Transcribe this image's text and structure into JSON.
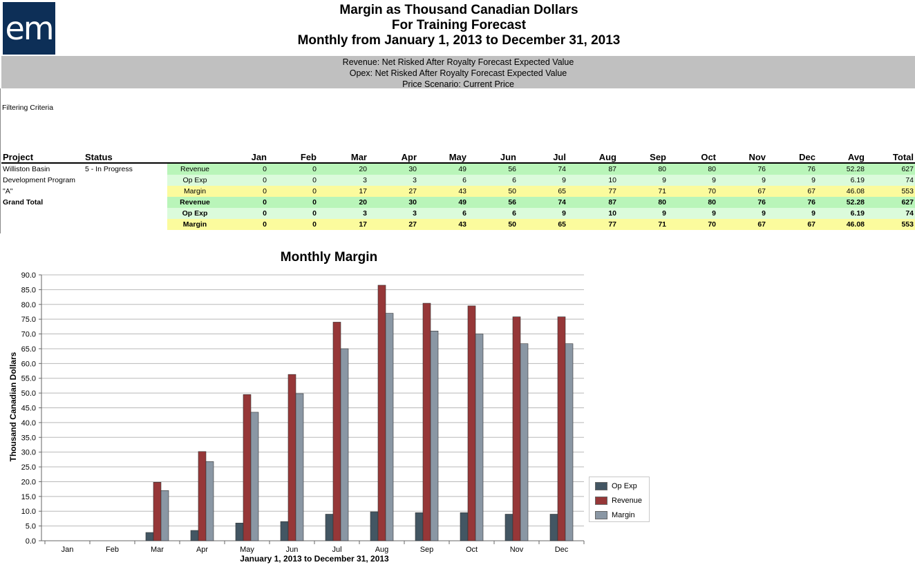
{
  "logo": {
    "text": "em"
  },
  "header": {
    "title_line1": "Margin as Thousand Canadian Dollars",
    "title_line2": "For Training Forecast",
    "title_line3": "Monthly from January 1, 2013 to December 31, 2013"
  },
  "subheader": {
    "line1": "Revenue: Net Risked After Royalty Forecast Expected Value",
    "line2": "Opex: Net Risked After Royalty Forecast Expected Value",
    "line3": "Price Scenario: Current Price"
  },
  "filter_label": "Filtering Criteria",
  "table": {
    "headers": {
      "project": "Project",
      "status": "Status",
      "months": [
        "Jan",
        "Feb",
        "Mar",
        "Apr",
        "May",
        "Jun",
        "Jul",
        "Aug",
        "Sep",
        "Oct",
        "Nov",
        "Dec"
      ],
      "avg": "Avg",
      "total": "Total"
    },
    "project": {
      "name_line1": "Williston Basin",
      "name_line2": "Development Program",
      "name_line3": "\"A\"",
      "status": "5 - In Progress",
      "rows": [
        {
          "label": "Revenue",
          "values": [
            "0",
            "0",
            "20",
            "30",
            "49",
            "56",
            "74",
            "87",
            "80",
            "80",
            "76",
            "76"
          ],
          "avg": "52.28",
          "total": "627"
        },
        {
          "label": "Op Exp",
          "values": [
            "0",
            "0",
            "3",
            "3",
            "6",
            "6",
            "9",
            "10",
            "9",
            "9",
            "9",
            "9"
          ],
          "avg": "6.19",
          "total": "74"
        },
        {
          "label": "Margin",
          "values": [
            "0",
            "0",
            "17",
            "27",
            "43",
            "50",
            "65",
            "77",
            "71",
            "70",
            "67",
            "67"
          ],
          "avg": "46.08",
          "total": "553"
        }
      ]
    },
    "grand_total": {
      "label": "Grand Total",
      "rows": [
        {
          "label": "Revenue",
          "values": [
            "0",
            "0",
            "20",
            "30",
            "49",
            "56",
            "74",
            "87",
            "80",
            "80",
            "76",
            "76"
          ],
          "avg": "52.28",
          "total": "627"
        },
        {
          "label": "Op Exp",
          "values": [
            "0",
            "0",
            "3",
            "3",
            "6",
            "6",
            "9",
            "10",
            "9",
            "9",
            "9",
            "9"
          ],
          "avg": "6.19",
          "total": "74"
        },
        {
          "label": "Margin",
          "values": [
            "0",
            "0",
            "17",
            "27",
            "43",
            "50",
            "65",
            "77",
            "71",
            "70",
            "67",
            "67"
          ],
          "avg": "46.08",
          "total": "553"
        }
      ]
    }
  },
  "colors": {
    "revenue_row": "#b9f5b9",
    "opexp_row": "#dbfbdb",
    "margin_row": "#fbfb9d"
  },
  "chart_data": {
    "type": "bar",
    "title": "Monthly Margin",
    "xlabel": "January 1, 2013 to December 31, 2013",
    "ylabel": "Thousand Canadian Dollars",
    "categories": [
      "Jan",
      "Feb",
      "Mar",
      "Apr",
      "May",
      "Jun",
      "Jul",
      "Aug",
      "Sep",
      "Oct",
      "Nov",
      "Dec"
    ],
    "ylim": [
      0,
      90
    ],
    "ytick_step": 5,
    "yticks": [
      "0.0",
      "5.0",
      "10.0",
      "15.0",
      "20.0",
      "25.0",
      "30.0",
      "35.0",
      "40.0",
      "45.0",
      "50.0",
      "55.0",
      "60.0",
      "65.0",
      "70.0",
      "75.0",
      "80.0",
      "85.0",
      "90.0"
    ],
    "grid": true,
    "legend_position": "right",
    "series": [
      {
        "name": "Op Exp",
        "color": "#435663",
        "values": [
          0,
          0,
          2.8,
          3.5,
          6.0,
          6.5,
          9.0,
          9.8,
          9.5,
          9.5,
          9.0,
          9.0
        ]
      },
      {
        "name": "Revenue",
        "color": "#963738",
        "values": [
          0,
          0,
          19.8,
          30.2,
          49.5,
          56.3,
          74.0,
          86.5,
          80.4,
          79.5,
          75.8,
          75.8
        ]
      },
      {
        "name": "Margin",
        "color": "#8a97a4",
        "values": [
          0,
          0,
          17.0,
          26.8,
          43.5,
          49.8,
          65.0,
          77.0,
          71.0,
          70.0,
          66.7,
          66.7
        ]
      }
    ]
  }
}
